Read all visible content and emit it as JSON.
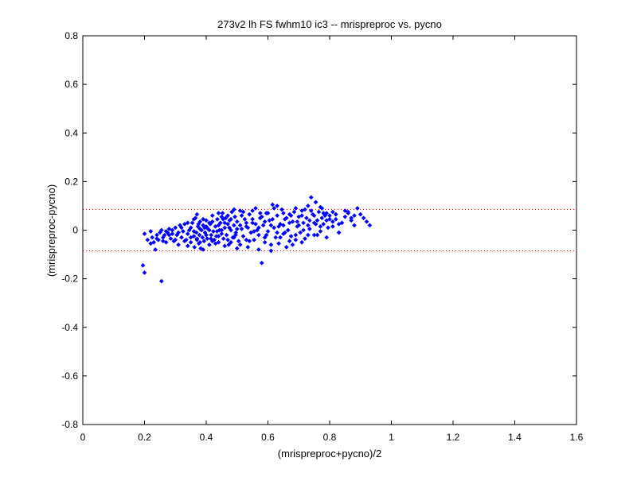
{
  "chart_data": {
    "type": "scatter",
    "title": "273v2 lh FS fwhm10 ic3 -- mrispreproc vs. pycno",
    "xlabel": "(mrispreproc+pycno)/2",
    "ylabel": "(mrispreproc-pycno)",
    "xlim": [
      0,
      1.6
    ],
    "ylim": [
      -0.8,
      0.8
    ],
    "xticks": [
      0,
      0.2,
      0.4,
      0.6,
      0.8,
      1,
      1.2,
      1.4,
      1.6
    ],
    "xtick_labels": [
      "0",
      "0.2",
      "0.4",
      "0.6",
      "0.8",
      "1",
      "1.2",
      "1.4",
      "1.6"
    ],
    "yticks": [
      -0.8,
      -0.6,
      -0.4,
      -0.2,
      0,
      0.2,
      0.4,
      0.6,
      0.8
    ],
    "ytick_labels": [
      "-0.8",
      "-0.6",
      "-0.4",
      "-0.2",
      "0",
      "0.2",
      "0.4",
      "0.6",
      "0.8"
    ],
    "grid": false,
    "marker_color": "#0000ff",
    "reference_line_color": "#ff0000",
    "reference_lines_y": [
      0.085,
      -0.085
    ],
    "series": [
      {
        "points": [
          [
            0.195,
            -0.145
          ],
          [
            0.2,
            -0.175
          ],
          [
            0.255,
            -0.21
          ],
          [
            0.2,
            -0.015
          ],
          [
            0.21,
            -0.04
          ],
          [
            0.22,
            -0.005
          ],
          [
            0.225,
            -0.03
          ],
          [
            0.23,
            -0.05
          ],
          [
            0.235,
            -0.08
          ],
          [
            0.24,
            -0.02
          ],
          [
            0.245,
            -0.04
          ],
          [
            0.25,
            -0.01
          ],
          [
            0.255,
            0.0
          ],
          [
            0.26,
            -0.03
          ],
          [
            0.265,
            -0.02
          ],
          [
            0.27,
            -0.05
          ],
          [
            0.275,
            -0.01
          ],
          [
            0.28,
            0.005
          ],
          [
            0.285,
            -0.035
          ],
          [
            0.29,
            -0.015
          ],
          [
            0.295,
            -0.045
          ],
          [
            0.3,
            0.01
          ],
          [
            0.305,
            -0.02
          ],
          [
            0.31,
            -0.06
          ],
          [
            0.315,
            0.02
          ],
          [
            0.32,
            -0.03
          ],
          [
            0.325,
            -0.005
          ],
          [
            0.33,
            0.025
          ],
          [
            0.335,
            -0.04
          ],
          [
            0.34,
            -0.015
          ],
          [
            0.345,
            0.0
          ],
          [
            0.35,
            -0.05
          ],
          [
            0.355,
            0.03
          ],
          [
            0.36,
            -0.025
          ],
          [
            0.362,
            -0.07
          ],
          [
            0.365,
            0.05
          ],
          [
            0.368,
            -0.01
          ],
          [
            0.37,
            -0.04
          ],
          [
            0.373,
            0.015
          ],
          [
            0.376,
            -0.055
          ],
          [
            0.378,
            -0.02
          ],
          [
            0.38,
            0.035
          ],
          [
            0.382,
            -0.075
          ],
          [
            0.385,
            0.0
          ],
          [
            0.388,
            -0.03
          ],
          [
            0.39,
            0.02
          ],
          [
            0.393,
            -0.045
          ],
          [
            0.396,
            -0.01
          ],
          [
            0.4,
            0.04
          ],
          [
            0.403,
            -0.035
          ],
          [
            0.406,
            0.005
          ],
          [
            0.41,
            -0.06
          ],
          [
            0.413,
            0.025
          ],
          [
            0.416,
            -0.02
          ],
          [
            0.42,
            0.06
          ],
          [
            0.423,
            -0.005
          ],
          [
            0.426,
            -0.04
          ],
          [
            0.43,
            0.015
          ],
          [
            0.433,
            -0.025
          ],
          [
            0.436,
            0.045
          ],
          [
            0.44,
            -0.05
          ],
          [
            0.443,
            0.0
          ],
          [
            0.446,
            0.03
          ],
          [
            0.45,
            -0.015
          ],
          [
            0.453,
            0.07
          ],
          [
            0.456,
            -0.035
          ],
          [
            0.46,
            0.01
          ],
          [
            0.463,
            0.05
          ],
          [
            0.466,
            -0.02
          ],
          [
            0.47,
            0.025
          ],
          [
            0.473,
            -0.06
          ],
          [
            0.476,
            0.04
          ],
          [
            0.48,
            0.0
          ],
          [
            0.483,
            0.075
          ],
          [
            0.486,
            -0.03
          ],
          [
            0.49,
            0.02
          ],
          [
            0.493,
            0.055
          ],
          [
            0.496,
            -0.01
          ],
          [
            0.5,
            0.035
          ],
          [
            0.505,
            -0.045
          ],
          [
            0.51,
            0.08
          ],
          [
            0.515,
            0.005
          ],
          [
            0.52,
            -0.025
          ],
          [
            0.525,
            0.045
          ],
          [
            0.53,
            0.015
          ],
          [
            0.535,
            -0.07
          ],
          [
            0.54,
            0.065
          ],
          [
            0.545,
            -0.01
          ],
          [
            0.55,
            0.03
          ],
          [
            0.555,
            -0.04
          ],
          [
            0.56,
            0.09
          ],
          [
            0.565,
            0.0
          ],
          [
            0.57,
            -0.02
          ],
          [
            0.575,
            0.05
          ],
          [
            0.58,
            -0.135
          ],
          [
            0.585,
            0.02
          ],
          [
            0.59,
            -0.05
          ],
          [
            0.595,
            0.07
          ],
          [
            0.6,
            -0.005
          ],
          [
            0.605,
            0.04
          ],
          [
            0.61,
            -0.085
          ],
          [
            0.615,
            0.105
          ],
          [
            0.62,
            0.01
          ],
          [
            0.625,
            -0.03
          ],
          [
            0.63,
            0.06
          ],
          [
            0.635,
            -0.055
          ],
          [
            0.64,
            0.025
          ],
          [
            0.645,
            0.085
          ],
          [
            0.65,
            -0.015
          ],
          [
            0.655,
            0.045
          ],
          [
            0.66,
            -0.07
          ],
          [
            0.665,
            0.0
          ],
          [
            0.67,
            0.065
          ],
          [
            0.675,
            -0.025
          ],
          [
            0.68,
            0.035
          ],
          [
            0.685,
            0.075
          ],
          [
            0.69,
            -0.04
          ],
          [
            0.695,
            0.015
          ],
          [
            0.7,
            0.055
          ],
          [
            0.705,
            -0.01
          ],
          [
            0.71,
            0.08
          ],
          [
            0.715,
            0.03
          ],
          [
            0.72,
            -0.035
          ],
          [
            0.725,
            0.05
          ],
          [
            0.73,
            0.1
          ],
          [
            0.735,
            0.005
          ],
          [
            0.74,
            0.135
          ],
          [
            0.745,
            0.065
          ],
          [
            0.75,
            -0.02
          ],
          [
            0.755,
            0.115
          ],
          [
            0.76,
            0.04
          ],
          [
            0.765,
            0.075
          ],
          [
            0.77,
            -0.005
          ],
          [
            0.775,
            0.09
          ],
          [
            0.78,
            0.025
          ],
          [
            0.785,
            0.06
          ],
          [
            0.79,
            -0.03
          ],
          [
            0.8,
            0.045
          ],
          [
            0.81,
            0.015
          ],
          [
            0.82,
            0.065
          ],
          [
            0.83,
            -0.01
          ],
          [
            0.84,
            0.03
          ],
          [
            0.85,
            0.055
          ],
          [
            0.86,
            0.075
          ],
          [
            0.87,
            0.04
          ],
          [
            0.88,
            0.02
          ],
          [
            0.89,
            0.09
          ],
          [
            0.9,
            0.065
          ],
          [
            0.92,
            0.035
          ],
          [
            0.93,
            0.02
          ],
          [
            0.34,
            -0.065
          ],
          [
            0.36,
            0.045
          ],
          [
            0.38,
            -0.05
          ],
          [
            0.42,
            -0.045
          ],
          [
            0.44,
            0.02
          ],
          [
            0.46,
            -0.065
          ],
          [
            0.48,
            -0.05
          ],
          [
            0.52,
            0.075
          ],
          [
            0.54,
            -0.045
          ],
          [
            0.56,
            0.025
          ],
          [
            0.6,
            0.07
          ],
          [
            0.64,
            -0.03
          ],
          [
            0.68,
            -0.06
          ],
          [
            0.72,
            0.085
          ],
          [
            0.76,
            -0.02
          ],
          [
            0.8,
            0.06
          ],
          [
            0.44,
            0.07
          ],
          [
            0.5,
            -0.075
          ],
          [
            0.58,
            0.055
          ],
          [
            0.62,
            0.09
          ],
          [
            0.66,
            0.05
          ],
          [
            0.7,
            0.02
          ],
          [
            0.74,
            0.08
          ],
          [
            0.78,
            0.07
          ],
          [
            0.82,
            0.045
          ],
          [
            0.86,
            0.07
          ],
          [
            0.88,
            0.06
          ],
          [
            0.32,
            0.01
          ],
          [
            0.3,
            -0.04
          ],
          [
            0.28,
            -0.02
          ],
          [
            0.26,
            -0.045
          ],
          [
            0.34,
            0.03
          ],
          [
            0.37,
            0.065
          ],
          [
            0.39,
            -0.08
          ],
          [
            0.41,
            0.03
          ],
          [
            0.45,
            0.055
          ],
          [
            0.47,
            -0.04
          ],
          [
            0.49,
            0.085
          ],
          [
            0.51,
            -0.06
          ],
          [
            0.53,
            0.03
          ],
          [
            0.55,
            0.08
          ],
          [
            0.57,
            -0.08
          ],
          [
            0.59,
            0.035
          ],
          [
            0.61,
            -0.06
          ],
          [
            0.63,
            0.1
          ],
          [
            0.65,
            0.02
          ],
          [
            0.67,
            -0.045
          ],
          [
            0.69,
            0.09
          ],
          [
            0.71,
            -0.05
          ],
          [
            0.73,
            0.02
          ],
          [
            0.75,
            0.06
          ],
          [
            0.77,
            0.095
          ],
          [
            0.79,
            0.04
          ],
          [
            0.81,
            0.075
          ],
          [
            0.83,
            0.025
          ],
          [
            0.85,
            0.08
          ],
          [
            0.87,
            0.05
          ],
          [
            0.91,
            0.05
          ],
          [
            0.35,
            -0.03
          ],
          [
            0.375,
            0.025
          ],
          [
            0.395,
            0.01
          ],
          [
            0.415,
            -0.035
          ],
          [
            0.435,
            -0.005
          ],
          [
            0.455,
            0.045
          ],
          [
            0.475,
            0.01
          ],
          [
            0.495,
            -0.02
          ],
          [
            0.515,
            0.06
          ],
          [
            0.535,
            0.01
          ],
          [
            0.555,
            -0.005
          ],
          [
            0.575,
            0.07
          ],
          [
            0.595,
            -0.02
          ],
          [
            0.615,
            0.045
          ],
          [
            0.635,
            0.015
          ],
          [
            0.655,
            -0.01
          ],
          [
            0.675,
            0.06
          ],
          [
            0.695,
            0.035
          ],
          [
            0.715,
            0.0
          ],
          [
            0.735,
            0.04
          ],
          [
            0.755,
            0.025
          ],
          [
            0.775,
            0.05
          ],
          [
            0.795,
            0.01
          ],
          [
            0.36,
            -0.005
          ],
          [
            0.38,
            0.005
          ],
          [
            0.4,
            -0.02
          ],
          [
            0.4,
            0.015
          ],
          [
            0.42,
            0.035
          ],
          [
            0.44,
            -0.025
          ],
          [
            0.46,
            0.03
          ],
          [
            0.48,
            0.045
          ],
          [
            0.5,
            0.005
          ],
          [
            0.22,
            -0.055
          ],
          [
            0.24,
            -0.035
          ],
          [
            0.27,
            -0.005
          ],
          [
            0.29,
            0.0
          ],
          [
            0.31,
            -0.01
          ],
          [
            0.33,
            -0.045
          ],
          [
            0.35,
            0.01
          ],
          [
            0.37,
            -0.035
          ],
          [
            0.39,
            0.045
          ],
          [
            0.41,
            0.0
          ],
          [
            0.43,
            -0.055
          ],
          [
            0.45,
            0.0
          ],
          [
            0.47,
            0.06
          ],
          [
            0.49,
            -0.03
          ],
          [
            0.51,
            0.02
          ],
          [
            0.53,
            -0.04
          ],
          [
            0.55,
            0.045
          ],
          [
            0.57,
            0.01
          ],
          [
            0.59,
            -0.03
          ],
          [
            0.61,
            0.02
          ],
          [
            0.63,
            -0.01
          ],
          [
            0.65,
            0.07
          ],
          [
            0.67,
            0.03
          ],
          [
            0.69,
            -0.02
          ],
          [
            0.71,
            0.06
          ],
          [
            0.73,
            -0.02
          ],
          [
            0.75,
            0.03
          ],
          [
            0.77,
            0.015
          ],
          [
            0.79,
            0.07
          ],
          [
            0.81,
            0.035
          ]
        ]
      }
    ]
  }
}
